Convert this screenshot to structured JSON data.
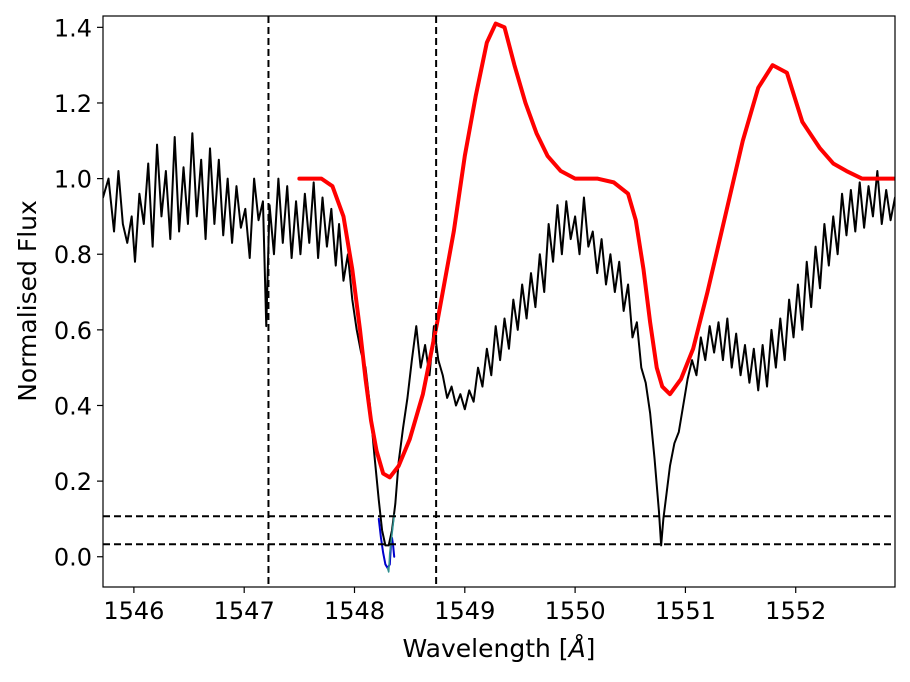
{
  "chart_data": {
    "type": "line",
    "title": "",
    "xlabel": "Wavelength [",
    "xlabel_unit": "Å",
    "xlabel_close": "]",
    "ylabel": "Normalised Flux",
    "xlim": [
      1545.72,
      1552.9
    ],
    "ylim": [
      -0.08,
      1.43
    ],
    "xticks": [
      1546,
      1547,
      1548,
      1549,
      1550,
      1551,
      1552
    ],
    "yticks": [
      0.0,
      0.2,
      0.4,
      0.6,
      0.8,
      1.0,
      1.2,
      1.4
    ],
    "ytick_labels": [
      "0.0",
      "0.2",
      "0.4",
      "0.6",
      "0.8",
      "1.0",
      "1.2",
      "1.4"
    ],
    "grid": false,
    "vlines": [
      1547.22,
      1548.74
    ],
    "hlines": [
      0.107,
      0.033
    ],
    "series": [
      {
        "role": "observed-spectrum",
        "color": "#000000",
        "points": [
          [
            1545.72,
            0.95
          ],
          [
            1545.77,
            1.0
          ],
          [
            1545.82,
            0.86
          ],
          [
            1545.86,
            1.02
          ],
          [
            1545.9,
            0.88
          ],
          [
            1545.94,
            0.83
          ],
          [
            1545.98,
            0.9
          ],
          [
            1546.01,
            0.78
          ],
          [
            1546.05,
            0.96
          ],
          [
            1546.09,
            0.88
          ],
          [
            1546.13,
            1.04
          ],
          [
            1546.17,
            0.82
          ],
          [
            1546.21,
            1.09
          ],
          [
            1546.25,
            0.9
          ],
          [
            1546.29,
            1.02
          ],
          [
            1546.33,
            0.84
          ],
          [
            1546.37,
            1.11
          ],
          [
            1546.41,
            0.86
          ],
          [
            1546.45,
            1.03
          ],
          [
            1546.49,
            0.88
          ],
          [
            1546.53,
            1.12
          ],
          [
            1546.57,
            0.9
          ],
          [
            1546.61,
            1.05
          ],
          [
            1546.65,
            0.84
          ],
          [
            1546.69,
            1.08
          ],
          [
            1546.73,
            0.88
          ],
          [
            1546.77,
            1.05
          ],
          [
            1546.81,
            0.85
          ],
          [
            1546.85,
            1.0
          ],
          [
            1546.89,
            0.83
          ],
          [
            1546.93,
            0.98
          ],
          [
            1546.97,
            0.87
          ],
          [
            1547.01,
            0.92
          ],
          [
            1547.05,
            0.79
          ],
          [
            1547.09,
            1.0
          ],
          [
            1547.13,
            0.89
          ],
          [
            1547.17,
            0.94
          ],
          [
            1547.2,
            0.61
          ],
          [
            1547.23,
            0.93
          ],
          [
            1547.27,
            0.8
          ],
          [
            1547.31,
            1.0
          ],
          [
            1547.35,
            0.83
          ],
          [
            1547.39,
            0.98
          ],
          [
            1547.43,
            0.79
          ],
          [
            1547.47,
            0.94
          ],
          [
            1547.51,
            0.8
          ],
          [
            1547.55,
            0.96
          ],
          [
            1547.59,
            0.83
          ],
          [
            1547.63,
            0.99
          ],
          [
            1547.67,
            0.79
          ],
          [
            1547.71,
            0.95
          ],
          [
            1547.75,
            0.82
          ],
          [
            1547.79,
            0.92
          ],
          [
            1547.83,
            0.77
          ],
          [
            1547.86,
            0.88
          ],
          [
            1547.9,
            0.73
          ],
          [
            1547.94,
            0.8
          ],
          [
            1547.98,
            0.68
          ],
          [
            1548.02,
            0.6
          ],
          [
            1548.06,
            0.54
          ],
          [
            1548.1,
            0.5
          ],
          [
            1548.14,
            0.4
          ],
          [
            1548.18,
            0.27
          ],
          [
            1548.22,
            0.15
          ],
          [
            1548.25,
            0.07
          ],
          [
            1548.28,
            0.03
          ],
          [
            1548.31,
            0.03
          ],
          [
            1548.34,
            0.07
          ],
          [
            1548.37,
            0.14
          ],
          [
            1548.4,
            0.25
          ],
          [
            1548.44,
            0.34
          ],
          [
            1548.48,
            0.42
          ],
          [
            1548.52,
            0.52
          ],
          [
            1548.56,
            0.61
          ],
          [
            1548.6,
            0.5
          ],
          [
            1548.64,
            0.56
          ],
          [
            1548.68,
            0.48
          ],
          [
            1548.72,
            0.61
          ],
          [
            1548.76,
            0.52
          ],
          [
            1548.8,
            0.48
          ],
          [
            1548.84,
            0.42
          ],
          [
            1548.88,
            0.45
          ],
          [
            1548.92,
            0.4
          ],
          [
            1548.96,
            0.43
          ],
          [
            1549.0,
            0.39
          ],
          [
            1549.04,
            0.44
          ],
          [
            1549.08,
            0.41
          ],
          [
            1549.12,
            0.5
          ],
          [
            1549.16,
            0.45
          ],
          [
            1549.2,
            0.55
          ],
          [
            1549.24,
            0.48
          ],
          [
            1549.28,
            0.61
          ],
          [
            1549.32,
            0.52
          ],
          [
            1549.36,
            0.63
          ],
          [
            1549.4,
            0.55
          ],
          [
            1549.44,
            0.68
          ],
          [
            1549.48,
            0.6
          ],
          [
            1549.52,
            0.72
          ],
          [
            1549.56,
            0.63
          ],
          [
            1549.6,
            0.75
          ],
          [
            1549.64,
            0.66
          ],
          [
            1549.68,
            0.8
          ],
          [
            1549.72,
            0.7
          ],
          [
            1549.76,
            0.88
          ],
          [
            1549.8,
            0.78
          ],
          [
            1549.84,
            0.93
          ],
          [
            1549.88,
            0.8
          ],
          [
            1549.92,
            0.94
          ],
          [
            1549.96,
            0.84
          ],
          [
            1550.0,
            0.9
          ],
          [
            1550.04,
            0.8
          ],
          [
            1550.08,
            0.95
          ],
          [
            1550.12,
            0.82
          ],
          [
            1550.16,
            0.86
          ],
          [
            1550.2,
            0.75
          ],
          [
            1550.24,
            0.84
          ],
          [
            1550.28,
            0.72
          ],
          [
            1550.32,
            0.8
          ],
          [
            1550.36,
            0.7
          ],
          [
            1550.4,
            0.78
          ],
          [
            1550.44,
            0.65
          ],
          [
            1550.48,
            0.72
          ],
          [
            1550.52,
            0.58
          ],
          [
            1550.56,
            0.62
          ],
          [
            1550.6,
            0.5
          ],
          [
            1550.64,
            0.46
          ],
          [
            1550.68,
            0.38
          ],
          [
            1550.72,
            0.26
          ],
          [
            1550.76,
            0.12
          ],
          [
            1550.78,
            0.03
          ],
          [
            1550.8,
            0.1
          ],
          [
            1550.83,
            0.17
          ],
          [
            1550.86,
            0.24
          ],
          [
            1550.9,
            0.3
          ],
          [
            1550.94,
            0.33
          ],
          [
            1550.98,
            0.4
          ],
          [
            1551.02,
            0.47
          ],
          [
            1551.06,
            0.52
          ],
          [
            1551.1,
            0.48
          ],
          [
            1551.14,
            0.58
          ],
          [
            1551.18,
            0.52
          ],
          [
            1551.22,
            0.61
          ],
          [
            1551.26,
            0.54
          ],
          [
            1551.3,
            0.62
          ],
          [
            1551.34,
            0.52
          ],
          [
            1551.38,
            0.63
          ],
          [
            1551.42,
            0.5
          ],
          [
            1551.46,
            0.59
          ],
          [
            1551.5,
            0.48
          ],
          [
            1551.54,
            0.56
          ],
          [
            1551.58,
            0.46
          ],
          [
            1551.62,
            0.55
          ],
          [
            1551.66,
            0.44
          ],
          [
            1551.7,
            0.56
          ],
          [
            1551.74,
            0.45
          ],
          [
            1551.78,
            0.6
          ],
          [
            1551.82,
            0.5
          ],
          [
            1551.86,
            0.63
          ],
          [
            1551.9,
            0.52
          ],
          [
            1551.94,
            0.68
          ],
          [
            1551.98,
            0.58
          ],
          [
            1552.02,
            0.72
          ],
          [
            1552.06,
            0.6
          ],
          [
            1552.1,
            0.78
          ],
          [
            1552.14,
            0.66
          ],
          [
            1552.18,
            0.82
          ],
          [
            1552.22,
            0.71
          ],
          [
            1552.26,
            0.88
          ],
          [
            1552.3,
            0.77
          ],
          [
            1552.34,
            0.9
          ],
          [
            1552.38,
            0.8
          ],
          [
            1552.42,
            0.96
          ],
          [
            1552.46,
            0.85
          ],
          [
            1552.5,
            0.97
          ],
          [
            1552.54,
            0.86
          ],
          [
            1552.58,
            0.99
          ],
          [
            1552.62,
            0.87
          ],
          [
            1552.66,
            0.98
          ],
          [
            1552.7,
            0.9
          ],
          [
            1552.74,
            1.02
          ],
          [
            1552.78,
            0.88
          ],
          [
            1552.82,
            0.97
          ],
          [
            1552.86,
            0.89
          ],
          [
            1552.9,
            0.95
          ]
        ]
      },
      {
        "role": "model-profile",
        "color": "#ff0000",
        "points": [
          [
            1547.5,
            1.0
          ],
          [
            1547.7,
            1.0
          ],
          [
            1547.8,
            0.98
          ],
          [
            1547.9,
            0.9
          ],
          [
            1547.98,
            0.76
          ],
          [
            1548.05,
            0.6
          ],
          [
            1548.1,
            0.47
          ],
          [
            1548.15,
            0.36
          ],
          [
            1548.2,
            0.28
          ],
          [
            1548.26,
            0.22
          ],
          [
            1548.32,
            0.21
          ],
          [
            1548.4,
            0.24
          ],
          [
            1548.5,
            0.31
          ],
          [
            1548.62,
            0.43
          ],
          [
            1548.75,
            0.62
          ],
          [
            1548.9,
            0.86
          ],
          [
            1549.0,
            1.06
          ],
          [
            1549.1,
            1.22
          ],
          [
            1549.2,
            1.36
          ],
          [
            1549.28,
            1.41
          ],
          [
            1549.36,
            1.4
          ],
          [
            1549.45,
            1.3
          ],
          [
            1549.55,
            1.2
          ],
          [
            1549.65,
            1.12
          ],
          [
            1549.75,
            1.06
          ],
          [
            1549.87,
            1.02
          ],
          [
            1550.0,
            1.0
          ],
          [
            1550.2,
            1.0
          ],
          [
            1550.35,
            0.99
          ],
          [
            1550.48,
            0.96
          ],
          [
            1550.55,
            0.89
          ],
          [
            1550.62,
            0.76
          ],
          [
            1550.68,
            0.62
          ],
          [
            1550.74,
            0.5
          ],
          [
            1550.79,
            0.45
          ],
          [
            1550.86,
            0.43
          ],
          [
            1550.96,
            0.47
          ],
          [
            1551.07,
            0.55
          ],
          [
            1551.2,
            0.7
          ],
          [
            1551.36,
            0.9
          ],
          [
            1551.52,
            1.1
          ],
          [
            1551.66,
            1.24
          ],
          [
            1551.79,
            1.3
          ],
          [
            1551.92,
            1.28
          ],
          [
            1552.06,
            1.15
          ],
          [
            1552.22,
            1.08
          ],
          [
            1552.34,
            1.04
          ],
          [
            1552.46,
            1.02
          ],
          [
            1552.6,
            1.0
          ],
          [
            1552.75,
            1.0
          ],
          [
            1552.9,
            1.0
          ]
        ]
      },
      {
        "role": "absorption-core-blue",
        "color": "#0000cc",
        "points": [
          [
            1548.22,
            0.1
          ],
          [
            1548.24,
            0.05
          ],
          [
            1548.26,
            0.01
          ],
          [
            1548.28,
            -0.02
          ],
          [
            1548.3,
            -0.03
          ],
          [
            1548.32,
            -0.02
          ],
          [
            1548.33,
            0.03
          ],
          [
            1548.34,
            0.05
          ],
          [
            1548.35,
            0.03
          ],
          [
            1548.36,
            0.0
          ]
        ]
      },
      {
        "role": "absorption-core-teal",
        "color": "#2f8f8f",
        "points": [
          [
            1548.3,
            -0.03
          ],
          [
            1548.31,
            -0.04
          ],
          [
            1548.32,
            0.01
          ],
          [
            1548.34,
            0.06
          ],
          [
            1548.36,
            0.11
          ]
        ]
      }
    ]
  }
}
